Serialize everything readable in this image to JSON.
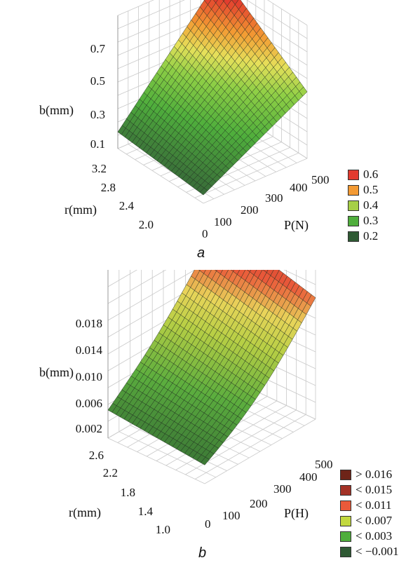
{
  "chart_data": [
    {
      "type": "surface3d",
      "panel_caption": "a",
      "zlabel": "b(mm)",
      "ylabel": "r(mm)",
      "xlabel": "P(N)",
      "z_ticks": [
        "0.7",
        "0.5",
        "0.3",
        "0.1"
      ],
      "r_ticks": [
        "3.2",
        "2.8",
        "2.4",
        "2.0"
      ],
      "p_ticks": [
        "0",
        "100",
        "200",
        "300",
        "400",
        "500"
      ],
      "p_range": [
        0,
        500
      ],
      "r_range": [
        2.0,
        3.2
      ],
      "z_range": [
        0.0,
        0.8
      ],
      "corner_values": {
        "p0_rmin": 0.05,
        "p500_rmin": 0.4,
        "p0_rmax": 0.1,
        "p500_rmax": 0.78
      },
      "legend": [
        {
          "label": "0.6",
          "color": "#e23b2e"
        },
        {
          "label": "0.5",
          "color": "#f39a33"
        },
        {
          "label": "0.4",
          "color": "#a6cf46"
        },
        {
          "label": "0.3",
          "color": "#4fae3c"
        },
        {
          "label": "0.2",
          "color": "#2f5a34"
        }
      ],
      "grid": true
    },
    {
      "type": "surface3d",
      "panel_caption": "b",
      "zlabel": "b(mm)",
      "ylabel": "r(mm)",
      "xlabel": "P(H)",
      "z_ticks": [
        "0.018",
        "0.014",
        "0.010",
        "0.006",
        "0.002"
      ],
      "r_ticks": [
        "2.6",
        "2.2",
        "1.8",
        "1.4",
        "1.0"
      ],
      "p_ticks": [
        "0",
        "100",
        "200",
        "300",
        "400",
        "500"
      ],
      "p_range": [
        0,
        500
      ],
      "r_range": [
        1.0,
        2.6
      ],
      "z_range": [
        0.0,
        0.018
      ],
      "corner_values": {
        "p0_rmin": 0.002,
        "p500_rmin": 0.013,
        "p0_rmax": 0.003,
        "p500_rmax": 0.016
      },
      "legend": [
        {
          "label": "> 0.016",
          "color": "#6e2418"
        },
        {
          "label": "< 0.015",
          "color": "#a33226"
        },
        {
          "label": "< 0.011",
          "color": "#ea5a3a"
        },
        {
          "label": "< 0.007",
          "color": "#c2d83f"
        },
        {
          "label": "< 0.003",
          "color": "#4fae3c"
        },
        {
          "label": "< −0.001",
          "color": "#2f5a34"
        }
      ],
      "grid": true
    }
  ]
}
